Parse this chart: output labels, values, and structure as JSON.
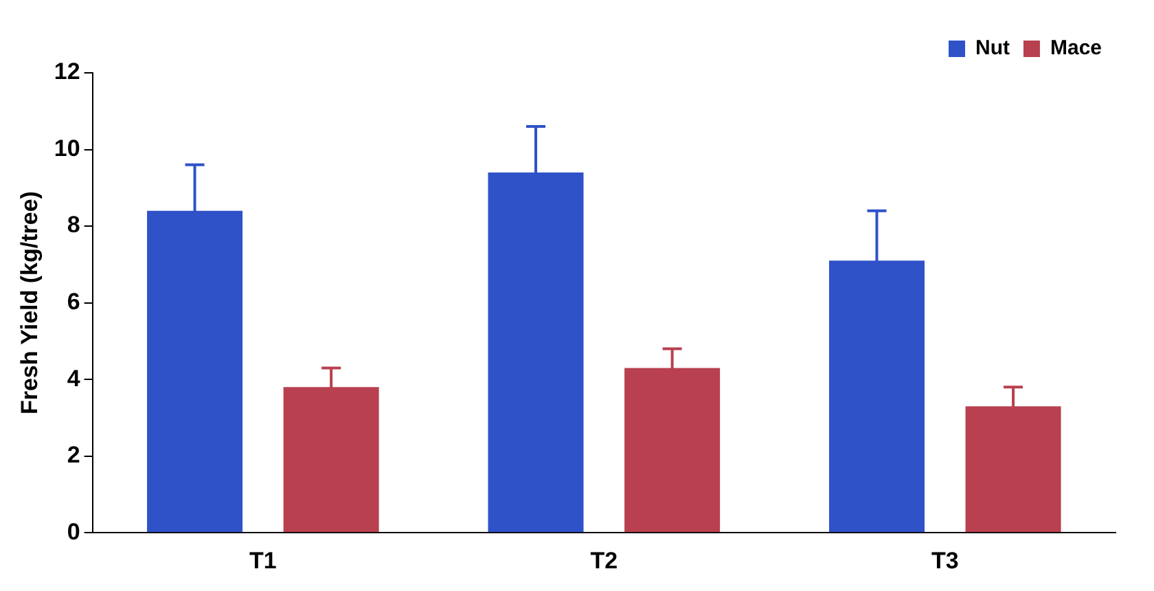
{
  "chart_data": {
    "type": "bar",
    "ylabel": "Fresh Yield (kg/tree)",
    "categories": [
      "T1",
      "T2",
      "T3"
    ],
    "series": [
      {
        "name": "Nut",
        "color": "#2f52c8",
        "values": [
          8.4,
          9.4,
          7.1
        ],
        "errors": [
          1.2,
          1.2,
          1.3
        ]
      },
      {
        "name": "Mace",
        "color": "#b8404f",
        "values": [
          3.8,
          4.3,
          3.3
        ],
        "errors": [
          0.5,
          0.5,
          0.5
        ]
      }
    ],
    "ylim": [
      0,
      12
    ],
    "yticks": [
      0,
      2,
      4,
      6,
      8,
      10,
      12
    ],
    "grid": false,
    "legend": "top right"
  }
}
